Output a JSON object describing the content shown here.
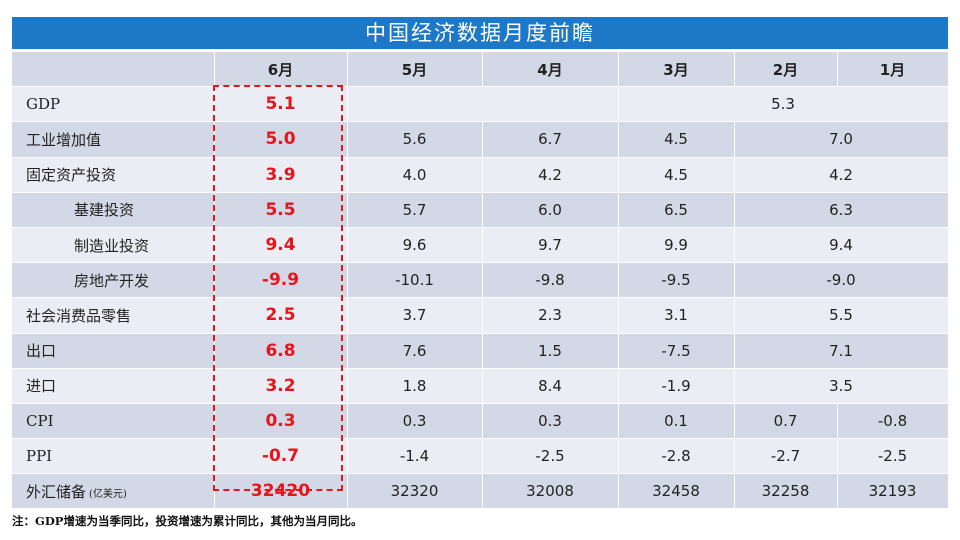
{
  "title": "中国经济数据月度前瞻",
  "columns": [
    "",
    "6月",
    "5月",
    "4月",
    "3月",
    "2月",
    "1月"
  ],
  "rows": {
    "gdp": {
      "label": "GDP",
      "jun": "5.1",
      "q1": "5.3"
    },
    "ind": {
      "label": "工业增加值",
      "jun": "5.0",
      "may": "5.6",
      "apr": "6.7",
      "mar": "4.5",
      "janfeb": "7.0"
    },
    "fai": {
      "label": "固定资产投资",
      "jun": "3.9",
      "may": "4.0",
      "apr": "4.2",
      "mar": "4.5",
      "janfeb": "4.2"
    },
    "infra": {
      "label": "基建投资",
      "jun": "5.5",
      "may": "5.7",
      "apr": "6.0",
      "mar": "6.5",
      "janfeb": "6.3"
    },
    "mfg": {
      "label": "制造业投资",
      "jun": "9.4",
      "may": "9.6",
      "apr": "9.7",
      "mar": "9.9",
      "janfeb": "9.4"
    },
    "re": {
      "label": "房地产开发",
      "jun": "-9.9",
      "may": "-10.1",
      "apr": "-9.8",
      "mar": "-9.5",
      "janfeb": "-9.0"
    },
    "retail": {
      "label": "社会消费品零售",
      "jun": "2.5",
      "may": "3.7",
      "apr": "2.3",
      "mar": "3.1",
      "janfeb": "5.5"
    },
    "exp": {
      "label": "出口",
      "jun": "6.8",
      "may": "7.6",
      "apr": "1.5",
      "mar": "-7.5",
      "janfeb": "7.1"
    },
    "imp": {
      "label": "进口",
      "jun": "3.2",
      "may": "1.8",
      "apr": "8.4",
      "mar": "-1.9",
      "janfeb": "3.5"
    },
    "cpi": {
      "label": "CPI",
      "jun": "0.3",
      "may": "0.3",
      "apr": "0.3",
      "mar": "0.1",
      "feb": "0.7",
      "jan": "-0.8"
    },
    "ppi": {
      "label": "PPI",
      "jun": "-0.7",
      "may": "-1.4",
      "apr": "-2.5",
      "mar": "-2.8",
      "feb": "-2.7",
      "jan": "-2.5"
    },
    "fx": {
      "label": "外汇储备",
      "unit": "(亿美元)",
      "jun": "32420",
      "may": "32320",
      "apr": "32008",
      "mar": "32458",
      "feb": "32258",
      "jan": "32193"
    }
  },
  "note": "注：GDP增速为当季同比，投资增速为累计同比，其他为当月同比。"
}
